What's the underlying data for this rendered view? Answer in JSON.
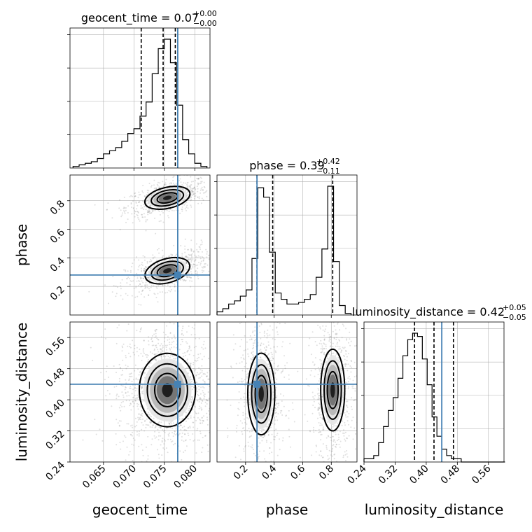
{
  "chart_data": {
    "type": "corner",
    "parameters": [
      "geocent_time",
      "phase",
      "luminosity_distance"
    ],
    "axis_labels": {
      "geocent_time": "geocent_time",
      "phase": "phase",
      "luminosity_distance": "luminosity_distance"
    },
    "titles": [
      {
        "param": "geocent_time",
        "prefix": "geocent_time = ",
        "median": "0.07",
        "plus": "+0.00",
        "minus": "−0.00"
      },
      {
        "param": "phase",
        "prefix": "phase = ",
        "median": "0.39",
        "plus": "+0.42",
        "minus": "−0.11"
      },
      {
        "param": "luminosity_distance",
        "prefix": "luminosity_distance = ",
        "median": "0.42",
        "plus": "+0.05",
        "minus": "−0.05"
      }
    ],
    "ranges": {
      "geocent_time": [
        0.0595,
        0.0825
      ],
      "phase": [
        0.0,
        0.98
      ],
      "luminosity_distance": [
        0.24,
        0.6
      ]
    },
    "ticks": {
      "geocent_time": [
        0.065,
        0.07,
        0.075,
        0.08
      ],
      "phase": [
        0.2,
        0.4,
        0.6,
        0.8
      ],
      "phase_y": [
        0.2,
        0.4,
        0.6,
        0.8
      ],
      "luminosity_distance": [
        0.24,
        0.32,
        0.4,
        0.48,
        0.56
      ],
      "luminosity_distance_y": [
        0.24,
        0.32,
        0.4,
        0.48,
        0.56
      ]
    },
    "tick_labels": {
      "geocent_time": [
        "0.065",
        "0.070",
        "0.075",
        "0.080"
      ],
      "phase": [
        "0.2",
        "0.4",
        "0.6",
        "0.8"
      ],
      "phase_y": [
        "0.2",
        "0.4",
        "0.6",
        "0.8"
      ],
      "luminosity_distance": [
        "0.24",
        "0.32",
        "0.40",
        "0.48",
        "0.56"
      ],
      "luminosity_distance_y": [
        "0.24",
        "0.32",
        "0.40",
        "0.48",
        "0.56"
      ]
    },
    "truths": {
      "geocent_time": 0.0772,
      "phase": 0.28,
      "luminosity_distance": 0.44
    },
    "quantiles": {
      "geocent_time": [
        0.0712,
        0.0748,
        0.0768
      ],
      "phase": [
        0.28,
        0.39,
        0.81
      ],
      "luminosity_distance": [
        0.37,
        0.42,
        0.47
      ]
    },
    "histograms": {
      "geocent_time": {
        "edges_start": 0.06,
        "bin_width": 0.001,
        "counts": [
          1,
          2,
          3,
          4,
          6,
          9,
          11,
          13,
          17,
          22,
          25,
          33,
          42,
          60,
          76,
          82,
          67,
          40,
          18,
          9,
          3,
          1
        ]
      },
      "phase": {
        "edges_start": 0.0,
        "bin_width": 0.0408,
        "counts": [
          2,
          4,
          7,
          9,
          12,
          16,
          36,
          81,
          75,
          40,
          14,
          10,
          7,
          7,
          8,
          10,
          13,
          24,
          42,
          82,
          34,
          6,
          1
        ]
      },
      "luminosity_distance": {
        "edges_start": 0.24,
        "bin_width": 0.0125,
        "counts": [
          1,
          1,
          2,
          6,
          11,
          16,
          20,
          26,
          33,
          38,
          40,
          39,
          32,
          24,
          14,
          8,
          4,
          2,
          1,
          1,
          0,
          0,
          0,
          0,
          0,
          0,
          0,
          0,
          0
        ]
      }
    },
    "mode_blobs": [
      {
        "pair": "geocent_time-phase",
        "x": 0.0755,
        "y": 0.82,
        "sx": 0.0018,
        "sy": 0.035,
        "rho": 0.5,
        "weight": 0.5
      },
      {
        "pair": "geocent_time-phase",
        "x": 0.0755,
        "y": 0.31,
        "sx": 0.0018,
        "sy": 0.04,
        "rho": 0.55,
        "weight": 0.5
      },
      {
        "pair": "geocent_time-luminosity_distance",
        "x": 0.0755,
        "y": 0.425,
        "sx": 0.0022,
        "sy": 0.045,
        "rho": 0.0,
        "weight": 1.0
      },
      {
        "pair": "phase-luminosity_distance",
        "x": 0.31,
        "y": 0.415,
        "sx": 0.045,
        "sy": 0.05,
        "rho": 0.0,
        "weight": 0.5
      },
      {
        "pair": "phase-luminosity_distance",
        "x": 0.81,
        "y": 0.425,
        "sx": 0.04,
        "sy": 0.05,
        "rho": 0.0,
        "weight": 0.5
      }
    ],
    "colors": {
      "truth": "#4682b4",
      "hist": "#000000",
      "grid": "#b0b0b0",
      "scatter": "#7f7f7f"
    }
  }
}
